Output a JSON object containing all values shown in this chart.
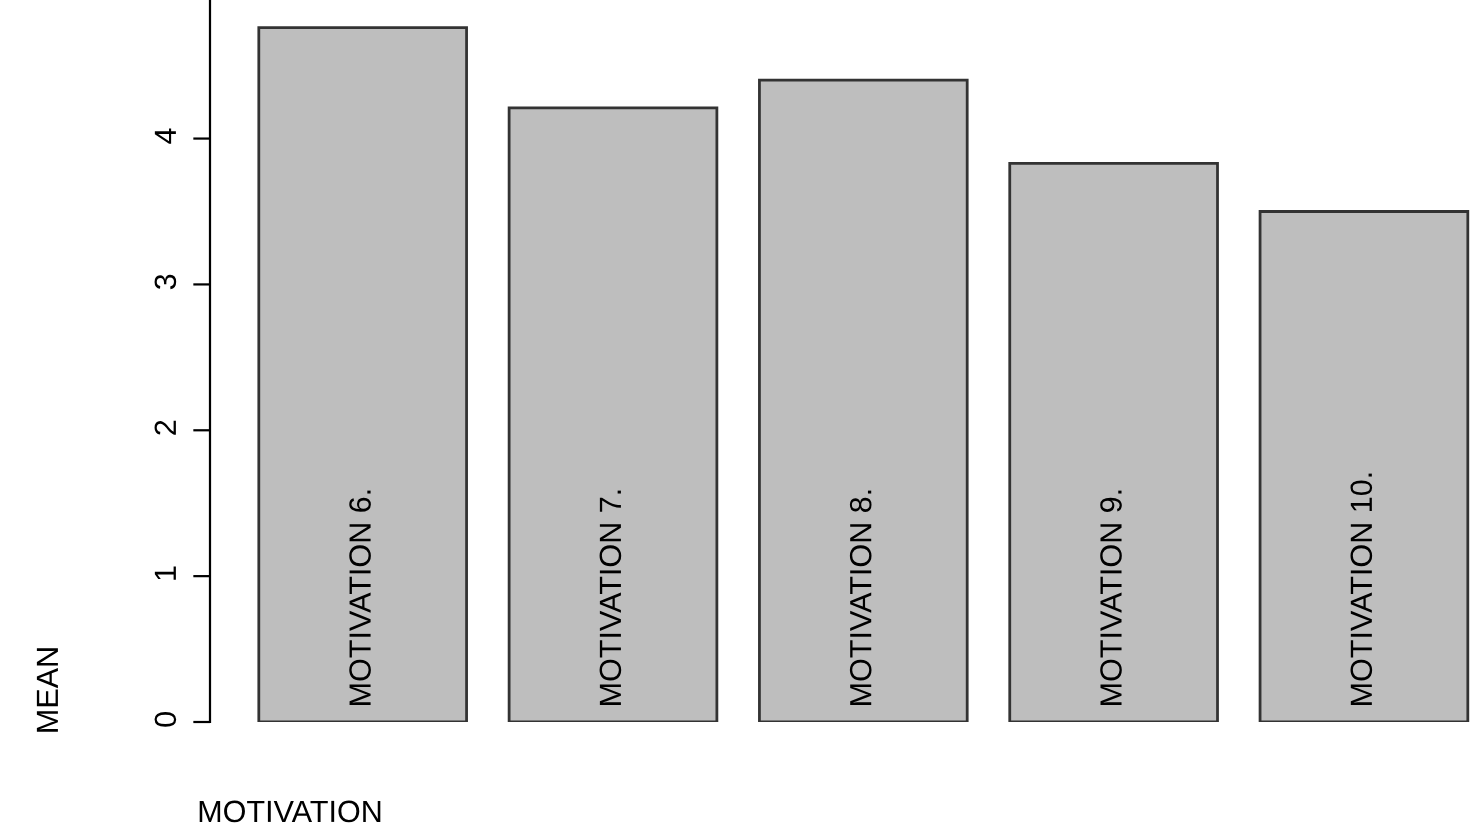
{
  "chart_data": {
    "type": "bar",
    "xlabel": "MOTIVATION",
    "ylabel": "MEAN",
    "categories": [
      "MOTIVATION 6.",
      "MOTIVATION 7.",
      "MOTIVATION 8.",
      "MOTIVATION 9.",
      "MOTIVATION 10."
    ],
    "values": [
      4.76,
      4.21,
      4.4,
      3.83,
      3.5
    ],
    "color": "#bebebe",
    "ylim": [
      0,
      4.95
    ],
    "yticks": [
      0,
      1,
      2,
      3,
      4
    ],
    "grid": false,
    "legend": false
  }
}
